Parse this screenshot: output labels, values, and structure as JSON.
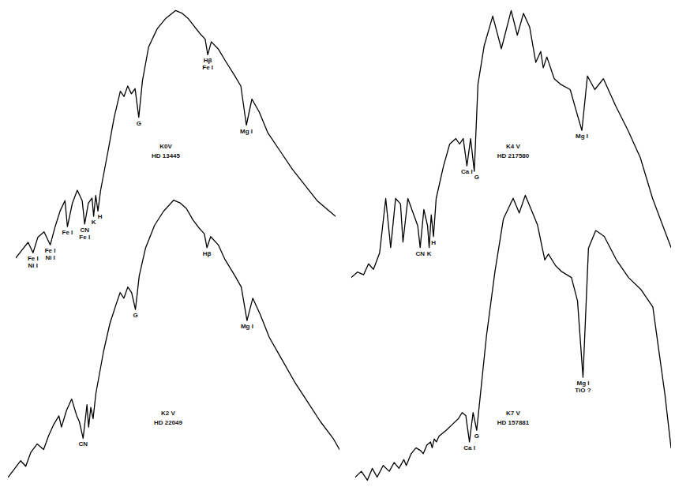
{
  "chart_data": [
    {
      "type": "line",
      "title": "K0V",
      "subtitle": "HD 13445",
      "color": "#000000",
      "tick_labels": false,
      "xlim": [
        3300,
        5900
      ],
      "ylim": [
        0,
        1
      ],
      "x": [
        3300,
        3350,
        3400,
        3440,
        3480,
        3530,
        3580,
        3620,
        3660,
        3700,
        3720,
        3760,
        3800,
        3840,
        3860,
        3890,
        3920,
        3933,
        3950,
        3968,
        3990,
        4050,
        4100,
        4150,
        4180,
        4210,
        4240,
        4270,
        4300,
        4330,
        4380,
        4450,
        4520,
        4600,
        4650,
        4700,
        4750,
        4800,
        4840,
        4861,
        4890,
        4950,
        5000,
        5080,
        5130,
        5175,
        5220,
        5280,
        5350,
        5450,
        5550,
        5650,
        5750,
        5850,
        5900
      ],
      "values": [
        0.04,
        0.07,
        0.1,
        0.06,
        0.12,
        0.14,
        0.09,
        0.16,
        0.22,
        0.26,
        0.16,
        0.25,
        0.3,
        0.26,
        0.17,
        0.25,
        0.27,
        0.2,
        0.28,
        0.22,
        0.3,
        0.45,
        0.58,
        0.68,
        0.66,
        0.7,
        0.67,
        0.69,
        0.58,
        0.72,
        0.85,
        0.92,
        0.96,
        0.99,
        0.98,
        0.96,
        0.93,
        0.9,
        0.88,
        0.82,
        0.87,
        0.84,
        0.8,
        0.74,
        0.7,
        0.55,
        0.65,
        0.6,
        0.52,
        0.45,
        0.38,
        0.32,
        0.26,
        0.22,
        0.2
      ],
      "annotations": [
        {
          "text": [
            "Fe I",
            "Ni I"
          ],
          "x": 3440
        },
        {
          "text": [
            "Fe I",
            "Ni I"
          ],
          "x": 3580
        },
        {
          "text": [
            "Fe I"
          ],
          "x": 3720
        },
        {
          "text": [
            "CN",
            "Fe I"
          ],
          "x": 3860
        },
        {
          "text": [
            "K"
          ],
          "x": 3933
        },
        {
          "text": [
            "H"
          ],
          "x": 3968
        },
        {
          "text": [
            "G"
          ],
          "x": 4300
        },
        {
          "text": [
            "Hβ",
            "Fe I"
          ],
          "x": 4861
        },
        {
          "text": [
            "Mg I"
          ],
          "x": 5175
        }
      ]
    },
    {
      "type": "line",
      "title": "K2 V",
      "subtitle": "HD 22049",
      "color": "#000000",
      "tick_labels": false,
      "xlim": [
        3300,
        5900
      ],
      "ylim": [
        0,
        1
      ],
      "x": [
        3300,
        3350,
        3400,
        3440,
        3480,
        3530,
        3580,
        3620,
        3660,
        3700,
        3720,
        3760,
        3800,
        3840,
        3860,
        3890,
        3920,
        3933,
        3950,
        3968,
        3990,
        4050,
        4100,
        4150,
        4180,
        4210,
        4240,
        4270,
        4300,
        4330,
        4380,
        4450,
        4520,
        4600,
        4650,
        4700,
        4750,
        4800,
        4840,
        4861,
        4890,
        4950,
        5000,
        5080,
        5130,
        5175,
        5220,
        5280,
        5350,
        5450,
        5550,
        5650,
        5750,
        5850,
        5900
      ],
      "values": [
        0.0,
        0.03,
        0.06,
        0.04,
        0.09,
        0.12,
        0.1,
        0.15,
        0.19,
        0.22,
        0.18,
        0.24,
        0.28,
        0.22,
        0.2,
        0.14,
        0.26,
        0.18,
        0.25,
        0.21,
        0.3,
        0.45,
        0.55,
        0.62,
        0.66,
        0.64,
        0.68,
        0.66,
        0.6,
        0.72,
        0.82,
        0.9,
        0.95,
        0.99,
        0.98,
        0.96,
        0.92,
        0.89,
        0.87,
        0.82,
        0.86,
        0.83,
        0.78,
        0.72,
        0.68,
        0.56,
        0.64,
        0.58,
        0.5,
        0.42,
        0.34,
        0.27,
        0.2,
        0.14,
        0.1
      ],
      "annotations": [
        {
          "text": [
            "CN"
          ],
          "x": 3890
        },
        {
          "text": [
            "G"
          ],
          "x": 4300
        },
        {
          "text": [
            "Hβ"
          ],
          "x": 4861
        },
        {
          "text": [
            "Mg I"
          ],
          "x": 5175
        }
      ]
    },
    {
      "type": "line",
      "title": "K4 V",
      "subtitle": "HD 217580",
      "color": "#000000",
      "tick_labels": false,
      "xlim": [
        3300,
        5900
      ],
      "ylim": [
        0,
        1
      ],
      "x": [
        3300,
        3350,
        3400,
        3440,
        3480,
        3530,
        3580,
        3620,
        3660,
        3700,
        3720,
        3760,
        3800,
        3840,
        3860,
        3890,
        3920,
        3933,
        3950,
        3968,
        3990,
        4050,
        4100,
        4150,
        4180,
        4210,
        4240,
        4270,
        4300,
        4330,
        4380,
        4450,
        4520,
        4600,
        4650,
        4700,
        4750,
        4800,
        4840,
        4861,
        4890,
        4950,
        5000,
        5080,
        5130,
        5175,
        5220,
        5280,
        5350,
        5450,
        5550,
        5650,
        5750,
        5850,
        5900
      ],
      "values": [
        0.01,
        0.03,
        0.02,
        0.06,
        0.04,
        0.1,
        0.3,
        0.12,
        0.3,
        0.28,
        0.14,
        0.3,
        0.25,
        0.2,
        0.12,
        0.26,
        0.2,
        0.12,
        0.24,
        0.16,
        0.3,
        0.42,
        0.5,
        0.52,
        0.5,
        0.52,
        0.42,
        0.52,
        0.4,
        0.72,
        0.86,
        0.97,
        0.85,
        0.99,
        0.9,
        0.98,
        0.93,
        0.8,
        0.84,
        0.78,
        0.82,
        0.74,
        0.72,
        0.7,
        0.62,
        0.55,
        0.75,
        0.7,
        0.74,
        0.64,
        0.55,
        0.45,
        0.3,
        0.18,
        0.12
      ],
      "annotations": [
        {
          "text": [
            "CN"
          ],
          "x": 3860
        },
        {
          "text": [
            "K"
          ],
          "x": 3933
        },
        {
          "text": [
            "H"
          ],
          "x": 3968
        },
        {
          "text": [
            "Ca I"
          ],
          "x": 4240
        },
        {
          "text": [
            "G"
          ],
          "x": 4300
        },
        {
          "text": [
            "Mg I"
          ],
          "x": 5175
        }
      ]
    },
    {
      "type": "line",
      "title": "K7 V",
      "subtitle": "HD 157881",
      "color": "#000000",
      "tick_labels": false,
      "xlim": [
        3300,
        5900
      ],
      "ylim": [
        0,
        1
      ],
      "x": [
        3300,
        3350,
        3400,
        3440,
        3480,
        3530,
        3580,
        3620,
        3660,
        3700,
        3720,
        3760,
        3800,
        3840,
        3860,
        3890,
        3920,
        3933,
        3950,
        3968,
        3990,
        4050,
        4100,
        4150,
        4180,
        4210,
        4240,
        4270,
        4300,
        4330,
        4380,
        4450,
        4520,
        4600,
        4650,
        4700,
        4750,
        4800,
        4840,
        4861,
        4890,
        4950,
        5000,
        5080,
        5130,
        5175,
        5220,
        5280,
        5350,
        5450,
        5550,
        5650,
        5750,
        5850,
        5900
      ],
      "values": [
        0.02,
        0.04,
        0.01,
        0.05,
        0.02,
        0.06,
        0.04,
        0.07,
        0.05,
        0.08,
        0.06,
        0.1,
        0.12,
        0.11,
        0.1,
        0.13,
        0.14,
        0.12,
        0.15,
        0.14,
        0.16,
        0.18,
        0.2,
        0.22,
        0.24,
        0.23,
        0.14,
        0.24,
        0.18,
        0.3,
        0.5,
        0.72,
        0.9,
        0.97,
        0.92,
        0.98,
        0.93,
        0.88,
        0.8,
        0.76,
        0.78,
        0.74,
        0.72,
        0.7,
        0.62,
        0.36,
        0.8,
        0.86,
        0.84,
        0.76,
        0.7,
        0.66,
        0.6,
        0.3,
        0.12
      ],
      "annotations": [
        {
          "text": [
            "Ca I"
          ],
          "x": 4240
        },
        {
          "text": [
            "G"
          ],
          "x": 4300
        },
        {
          "text": [
            "Mg I",
            "TiO ?"
          ],
          "x": 5175
        }
      ]
    }
  ]
}
